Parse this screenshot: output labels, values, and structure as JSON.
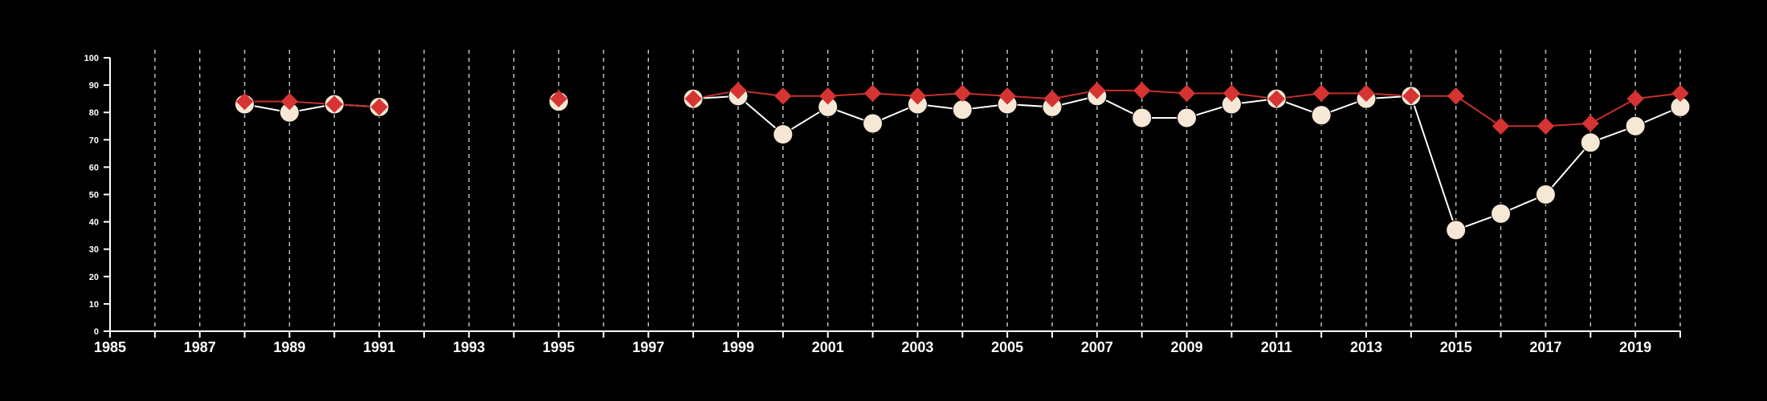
{
  "chart_data": {
    "type": "line",
    "title": "",
    "xlabel": "",
    "ylabel": "",
    "xlim": [
      1985,
      2020
    ],
    "ylim": [
      0,
      100
    ],
    "xticks": [
      1985,
      1987,
      1989,
      1991,
      1993,
      1995,
      1997,
      1999,
      2001,
      2003,
      2005,
      2007,
      2009,
      2011,
      2013,
      2015,
      2017,
      2019
    ],
    "yticks": [
      0,
      10,
      20,
      30,
      40,
      50,
      60,
      70,
      80,
      90,
      100
    ],
    "grid": "vertical-dashed-yearly",
    "legend": "none",
    "colors": {
      "background": "#000000",
      "axis": "#ffffff",
      "grid": "#bbbbbb",
      "series_circle_fill": "#f6e8d4",
      "series_circle_line": "#ffffff",
      "series_diamond": "#d63333",
      "series_diamond_line": "#c42f2f"
    },
    "x": [
      1988,
      1989,
      1990,
      1991,
      1995,
      1998,
      1999,
      2000,
      2001,
      2002,
      2003,
      2004,
      2005,
      2006,
      2007,
      2008,
      2009,
      2010,
      2011,
      2012,
      2013,
      2014,
      2015,
      2016,
      2017,
      2018,
      2019,
      2020
    ],
    "series": [
      {
        "marker": "circle",
        "values": [
          83,
          80,
          83,
          82,
          84,
          85,
          86,
          72,
          82,
          76,
          83,
          81,
          83,
          82,
          86,
          78,
          78,
          83,
          85,
          79,
          85,
          86,
          37,
          43,
          50,
          69,
          75,
          82
        ]
      },
      {
        "marker": "diamond",
        "values": [
          84,
          84,
          83,
          82,
          85,
          85,
          88,
          86,
          86,
          87,
          86,
          87,
          86,
          85,
          88,
          88,
          87,
          87,
          85,
          87,
          87,
          86,
          86,
          75,
          75,
          76,
          85,
          87
        ]
      }
    ]
  }
}
